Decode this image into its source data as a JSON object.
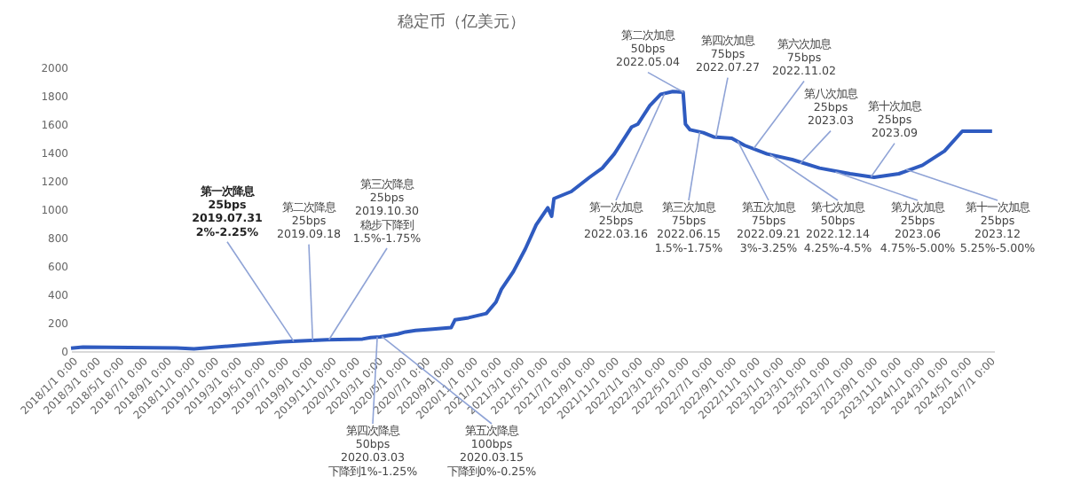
{
  "chart_data": {
    "type": "line",
    "title": "稳定币（亿美元）",
    "color": "#2f5bc0",
    "line_style": "solid",
    "marker": "none",
    "grid": false,
    "x": [
      "2018-01-01",
      "2018-02-01",
      "2018-10-01",
      "2018-11-15",
      "2019-04-01",
      "2019-07-01",
      "2019-10-25",
      "2020-01-25",
      "2020-02-15",
      "2020-03-10",
      "2020-04-25",
      "2020-05-15",
      "2020-06-10",
      "2020-07-25",
      "2020-09-10",
      "2020-09-20",
      "2020-10-25",
      "2020-12-10",
      "2021-01-04",
      "2021-01-18",
      "2021-02-18",
      "2021-03-21",
      "2021-04-18",
      "2021-05-18",
      "2021-05-28",
      "2021-06-03",
      "2021-07-18",
      "2021-09-03",
      "2021-10-06",
      "2021-11-06",
      "2021-12-21",
      "2022-01-06",
      "2022-02-06",
      "2022-03-06",
      "2022-04-06",
      "2022-05-03",
      "2022-05-09",
      "2022-05-21",
      "2022-06-24",
      "2022-07-21",
      "2022-09-06",
      "2022-10-09",
      "2022-12-06",
      "2023-02-09",
      "2023-04-21",
      "2023-07-09",
      "2023-09-09",
      "2023-11-12",
      "2024-01-12",
      "2024-03-09",
      "2024-04-24",
      "2024-07-10"
    ],
    "values": [
      20,
      28,
      22,
      15,
      45,
      65,
      80,
      85,
      95,
      100,
      120,
      135,
      145,
      155,
      165,
      220,
      235,
      265,
      345,
      435,
      560,
      720,
      890,
      1010,
      950,
      1075,
      1125,
      1225,
      1290,
      1390,
      1580,
      1600,
      1730,
      1810,
      1830,
      1825,
      1600,
      1560,
      1540,
      1510,
      1500,
      1450,
      1390,
      1350,
      1290,
      1250,
      1225,
      1250,
      1310,
      1410,
      1550,
      1550
    ],
    "xlim": [
      "2018-01-01",
      "2024-07-15"
    ],
    "ylim": [
      0,
      2000
    ],
    "yticks": [
      0,
      200,
      400,
      600,
      800,
      1000,
      1200,
      1400,
      1600,
      1800,
      2000
    ],
    "xticks": [
      {
        "value": "2018-01-01",
        "label": "2018/1/1 0:00"
      },
      {
        "value": "2018-03-01",
        "label": "2018/3/1 0:00"
      },
      {
        "value": "2018-05-01",
        "label": "2018/5/1 0:00"
      },
      {
        "value": "2018-07-01",
        "label": "2018/7/1 0:00"
      },
      {
        "value": "2018-09-01",
        "label": "2018/9/1 0:00"
      },
      {
        "value": "2018-11-01",
        "label": "2018/11/1 0:00"
      },
      {
        "value": "2019-01-01",
        "label": "2019/1/1 0:00"
      },
      {
        "value": "2019-03-01",
        "label": "2019/3/1 0:00"
      },
      {
        "value": "2019-05-01",
        "label": "2019/5/1 0:00"
      },
      {
        "value": "2019-07-01",
        "label": "2019/7/1 0:00"
      },
      {
        "value": "2019-09-01",
        "label": "2019/9/1 0:00"
      },
      {
        "value": "2019-11-01",
        "label": "2019/11/1 0:00"
      },
      {
        "value": "2020-01-01",
        "label": "2020/1/1 0:00"
      },
      {
        "value": "2020-03-01",
        "label": "2020/3/1 0:00"
      },
      {
        "value": "2020-05-01",
        "label": "2020/5/1 0:00"
      },
      {
        "value": "2020-07-01",
        "label": "2020/7/1 0:00"
      },
      {
        "value": "2020-09-01",
        "label": "2020/9/1 0:00"
      },
      {
        "value": "2020-11-01",
        "label": "2020/11/1 0:00"
      },
      {
        "value": "2021-01-01",
        "label": "2021/1/1 0:00"
      },
      {
        "value": "2021-03-01",
        "label": "2021/3/1 0:00"
      },
      {
        "value": "2021-05-01",
        "label": "2021/5/1 0:00"
      },
      {
        "value": "2021-07-01",
        "label": "2021/7/1 0:00"
      },
      {
        "value": "2021-09-01",
        "label": "2021/9/1 0:00"
      },
      {
        "value": "2021-11-01",
        "label": "2021/11/1 0:00"
      },
      {
        "value": "2022-01-01",
        "label": "2022/1/1 0:00"
      },
      {
        "value": "2022-03-01",
        "label": "2022/3/1 0:00"
      },
      {
        "value": "2022-05-01",
        "label": "2022/5/1 0:00"
      },
      {
        "value": "2022-07-01",
        "label": "2022/7/1 0:00"
      },
      {
        "value": "2022-09-01",
        "label": "2022/9/1 0:00"
      },
      {
        "value": "2022-11-01",
        "label": "2022/11/1 0:00"
      },
      {
        "value": "2023-01-01",
        "label": "2023/1/1 0:00"
      },
      {
        "value": "2023-03-01",
        "label": "2023/3/1 0:00"
      },
      {
        "value": "2023-05-01",
        "label": "2023/5/1 0:00"
      },
      {
        "value": "2023-07-01",
        "label": "2023/7/1 0:00"
      },
      {
        "value": "2023-09-01",
        "label": "2023/9/1 0:00"
      },
      {
        "value": "2023-11-01",
        "label": "2023/11/1 0:00"
      },
      {
        "value": "2024-01-01",
        "label": "2024/1/1 0:00"
      },
      {
        "value": "2024-03-01",
        "label": "2024/3/1 0:00"
      },
      {
        "value": "2024-05-01",
        "label": "2024/5/1 0:00"
      },
      {
        "value": "2024-07-01",
        "label": "2024/7/1 0:00"
      }
    ],
    "annotations": [
      {
        "text": "第一次降息\n25bps\n2019.07.31\n2%-2.25%",
        "x": "2019-07-31",
        "y": 68
      },
      {
        "text": "第二次降息\n25bps\n2019.09.18",
        "x": "2019-09-18",
        "y": 74
      },
      {
        "text": "第三次降息\n25bps\n2019.10.30\n稳步下降到\n1.5%-1.75%",
        "x": "2019-10-30",
        "y": 80
      },
      {
        "text": "第四次降息\n50bps\n2020.03.03\n下降到1%-1.25%",
        "x": "2020-03-03",
        "y": 98
      },
      {
        "text": "第五次降息\n100bps\n2020.03.15\n下降到0%-0.25%",
        "x": "2020-03-15",
        "y": 102
      },
      {
        "text": "第一次加息\n25bps\n2022.03.16",
        "x": "2022-03-16",
        "y": 1815
      },
      {
        "text": "第二次加息\n50bps\n2022.05.04",
        "x": "2022-05-04",
        "y": 1825
      },
      {
        "text": "第三次加息\n75bps\n2022.06.15\n1.5%-1.75%",
        "x": "2022-06-15",
        "y": 1545
      },
      {
        "text": "第四次加息\n75bps\n2022.07.27",
        "x": "2022-07-27",
        "y": 1508
      },
      {
        "text": "第五次加息\n75bps\n2022.09.21\n3%-3.25%",
        "x": "2022-09-21",
        "y": 1480
      },
      {
        "text": "第六次加息\n75bps\n2022.11.02",
        "x": "2022-11-02",
        "y": 1430
      },
      {
        "text": "第七次加息\n50bps\n2022.12.14\n4.25%-4.5%",
        "x": "2022-12-14",
        "y": 1385
      },
      {
        "text": "第八次加息\n25bps\n2023.03",
        "x": "2023-03-01",
        "y": 1320
      },
      {
        "text": "第九次加息\n25bps\n2023.06\n4.75%-5.00%",
        "x": "2023-06-01",
        "y": 1262
      },
      {
        "text": "第十次加息\n25bps\n2023.09",
        "x": "2023-09-01",
        "y": 1228
      },
      {
        "text": "第十一次加息\n25bps\n2023.12\n5.25%-5.00%",
        "x": "2023-12-01",
        "y": 1280
      }
    ]
  }
}
